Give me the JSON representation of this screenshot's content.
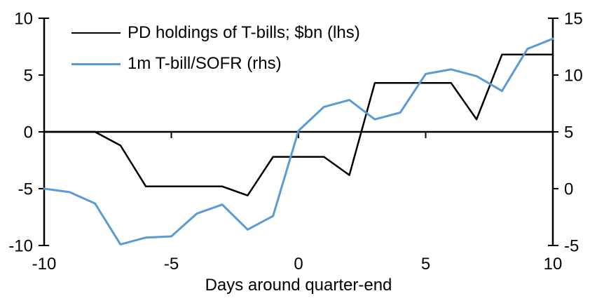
{
  "chart_data": {
    "type": "line",
    "title": "",
    "xlabel": "Days around quarter-end",
    "grid": false,
    "legend_position": "top-left-inside",
    "x": [
      -10,
      -9,
      -8,
      -7,
      -6,
      -5,
      -4,
      -3,
      -2,
      -1,
      0,
      1,
      2,
      3,
      4,
      5,
      6,
      7,
      8,
      9,
      10
    ],
    "x_axis": {
      "range": [
        -10,
        10
      ],
      "ticks": [
        -10,
        -5,
        0,
        5,
        10
      ]
    },
    "y_left": {
      "range": [
        -10,
        10
      ],
      "ticks": [
        -10,
        -5,
        0,
        5,
        10
      ]
    },
    "y_right": {
      "range": [
        -5,
        15
      ],
      "ticks": [
        -5,
        0,
        5,
        10,
        15
      ]
    },
    "series": [
      {
        "id": "pd-holdings",
        "name": "PD holdings of T-bills; $bn (lhs)",
        "axis": "left",
        "color": "#000000",
        "values": [
          0,
          0,
          0,
          -1.2,
          -4.8,
          -4.8,
          -4.8,
          -4.8,
          -5.6,
          -2.2,
          -2.2,
          -2.2,
          -3.8,
          4.3,
          4.3,
          4.3,
          4.3,
          1.1,
          6.8,
          6.8,
          6.8
        ]
      },
      {
        "id": "tbill-sofr",
        "name": "1m T-bill/SOFR (rhs)",
        "axis": "right",
        "color": "#5B9BD5",
        "values": [
          0,
          -0.3,
          -1.3,
          -4.9,
          -4.3,
          -4.2,
          -2.2,
          -1.4,
          -3.6,
          -2.4,
          5.1,
          7.2,
          7.8,
          6.1,
          6.7,
          10.1,
          10.5,
          9.9,
          8.6,
          12.3,
          13.2
        ]
      }
    ]
  }
}
